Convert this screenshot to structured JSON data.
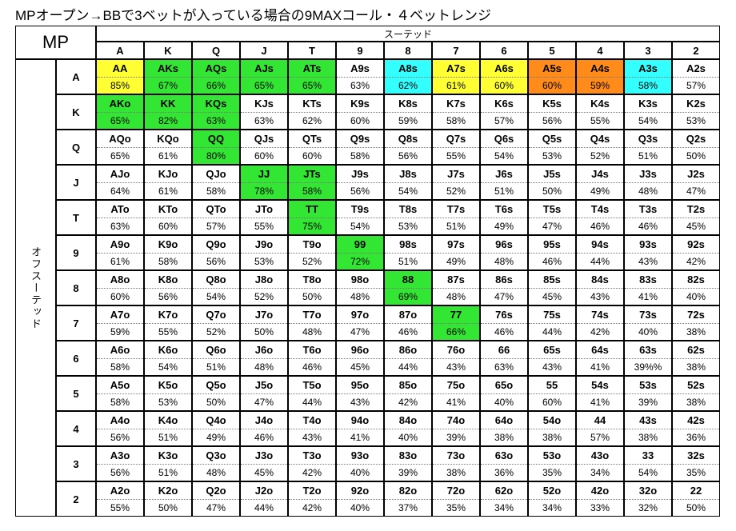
{
  "title": "MPオープン→BBで3ベットが入っている場合の9MAXコール・４ベットレンジ",
  "position": "MP",
  "suited_label": "スーテッド",
  "offsuit_label": "オフスーテッド",
  "columns": [
    "A",
    "K",
    "Q",
    "J",
    "T",
    "9",
    "8",
    "7",
    "6",
    "5",
    "4",
    "3",
    "2"
  ],
  "rows": [
    {
      "rank": "A",
      "cells": [
        {
          "hand": "AA",
          "pct": "85%",
          "color": "#ffff33"
        },
        {
          "hand": "AKs",
          "pct": "67%",
          "color": "#33e633"
        },
        {
          "hand": "AQs",
          "pct": "66%",
          "color": "#33e633"
        },
        {
          "hand": "AJs",
          "pct": "65%",
          "color": "#33e633"
        },
        {
          "hand": "ATs",
          "pct": "65%",
          "color": "#33e633"
        },
        {
          "hand": "A9s",
          "pct": "63%"
        },
        {
          "hand": "A8s",
          "pct": "62%",
          "color": "#33ffff"
        },
        {
          "hand": "A7s",
          "pct": "61%",
          "color": "#ffff33"
        },
        {
          "hand": "A6s",
          "pct": "60%",
          "color": "#ffff33"
        },
        {
          "hand": "A5s",
          "pct": "60%",
          "color": "#ff8c1a"
        },
        {
          "hand": "A4s",
          "pct": "59%",
          "color": "#ff8c1a"
        },
        {
          "hand": "A3s",
          "pct": "58%",
          "color": "#33ffff"
        },
        {
          "hand": "A2s",
          "pct": "57%"
        }
      ]
    },
    {
      "rank": "K",
      "cells": [
        {
          "hand": "AKo",
          "pct": "65%",
          "color": "#33e633"
        },
        {
          "hand": "KK",
          "pct": "82%",
          "color": "#33e633"
        },
        {
          "hand": "KQs",
          "pct": "63%",
          "color": "#33e633"
        },
        {
          "hand": "KJs",
          "pct": "63%"
        },
        {
          "hand": "KTs",
          "pct": "62%"
        },
        {
          "hand": "K9s",
          "pct": "60%"
        },
        {
          "hand": "K8s",
          "pct": "59%"
        },
        {
          "hand": "K7s",
          "pct": "58%"
        },
        {
          "hand": "K6s",
          "pct": "57%"
        },
        {
          "hand": "K5s",
          "pct": "56%"
        },
        {
          "hand": "K4s",
          "pct": "55%"
        },
        {
          "hand": "K3s",
          "pct": "54%"
        },
        {
          "hand": "K2s",
          "pct": "53%"
        }
      ]
    },
    {
      "rank": "Q",
      "cells": [
        {
          "hand": "AQo",
          "pct": "65%"
        },
        {
          "hand": "KQo",
          "pct": "61%"
        },
        {
          "hand": "QQ",
          "pct": "80%",
          "color": "#33e633"
        },
        {
          "hand": "QJs",
          "pct": "60%"
        },
        {
          "hand": "QTs",
          "pct": "60%"
        },
        {
          "hand": "Q9s",
          "pct": "58%"
        },
        {
          "hand": "Q8s",
          "pct": "56%"
        },
        {
          "hand": "Q7s",
          "pct": "55%"
        },
        {
          "hand": "Q6s",
          "pct": "54%"
        },
        {
          "hand": "Q5s",
          "pct": "53%"
        },
        {
          "hand": "Q4s",
          "pct": "52%"
        },
        {
          "hand": "Q3s",
          "pct": "51%"
        },
        {
          "hand": "Q2s",
          "pct": "50%"
        }
      ]
    },
    {
      "rank": "J",
      "cells": [
        {
          "hand": "AJo",
          "pct": "64%"
        },
        {
          "hand": "KJo",
          "pct": "61%"
        },
        {
          "hand": "QJo",
          "pct": "58%"
        },
        {
          "hand": "JJ",
          "pct": "78%",
          "color": "#33e633"
        },
        {
          "hand": "JTs",
          "pct": "58%",
          "color": "#33e633"
        },
        {
          "hand": "J9s",
          "pct": "56%"
        },
        {
          "hand": "J8s",
          "pct": "54%"
        },
        {
          "hand": "J7s",
          "pct": "52%"
        },
        {
          "hand": "J6s",
          "pct": "51%"
        },
        {
          "hand": "J5s",
          "pct": "50%"
        },
        {
          "hand": "J4s",
          "pct": "49%"
        },
        {
          "hand": "J3s",
          "pct": "48%"
        },
        {
          "hand": "J2s",
          "pct": "47%"
        }
      ]
    },
    {
      "rank": "T",
      "cells": [
        {
          "hand": "ATo",
          "pct": "63%"
        },
        {
          "hand": "KTo",
          "pct": "60%"
        },
        {
          "hand": "QTo",
          "pct": "57%"
        },
        {
          "hand": "JTo",
          "pct": "55%"
        },
        {
          "hand": "TT",
          "pct": "75%",
          "color": "#33e633"
        },
        {
          "hand": "T9s",
          "pct": "54%"
        },
        {
          "hand": "T8s",
          "pct": "53%"
        },
        {
          "hand": "T7s",
          "pct": "51%"
        },
        {
          "hand": "T6s",
          "pct": "49%"
        },
        {
          "hand": "T5s",
          "pct": "47%"
        },
        {
          "hand": "T4s",
          "pct": "46%"
        },
        {
          "hand": "T3s",
          "pct": "46%"
        },
        {
          "hand": "T2s",
          "pct": "45%"
        }
      ]
    },
    {
      "rank": "9",
      "cells": [
        {
          "hand": "A9o",
          "pct": "61%"
        },
        {
          "hand": "K9o",
          "pct": "58%"
        },
        {
          "hand": "Q9o",
          "pct": "56%"
        },
        {
          "hand": "J9o",
          "pct": "53%"
        },
        {
          "hand": "T9o",
          "pct": "52%"
        },
        {
          "hand": "99",
          "pct": "72%",
          "color": "#33e633"
        },
        {
          "hand": "98s",
          "pct": "51%"
        },
        {
          "hand": "97s",
          "pct": "49%"
        },
        {
          "hand": "96s",
          "pct": "48%"
        },
        {
          "hand": "95s",
          "pct": "46%"
        },
        {
          "hand": "94s",
          "pct": "44%"
        },
        {
          "hand": "93s",
          "pct": "43%"
        },
        {
          "hand": "92s",
          "pct": "42%"
        }
      ]
    },
    {
      "rank": "8",
      "cells": [
        {
          "hand": "A8o",
          "pct": "60%"
        },
        {
          "hand": "K8o",
          "pct": "56%"
        },
        {
          "hand": "Q8o",
          "pct": "54%"
        },
        {
          "hand": "J8o",
          "pct": "52%"
        },
        {
          "hand": "T8o",
          "pct": "50%"
        },
        {
          "hand": "98o",
          "pct": "48%"
        },
        {
          "hand": "88",
          "pct": "69%",
          "color": "#33e633"
        },
        {
          "hand": "87s",
          "pct": "48%"
        },
        {
          "hand": "86s",
          "pct": "47%"
        },
        {
          "hand": "85s",
          "pct": "45%"
        },
        {
          "hand": "84s",
          "pct": "43%"
        },
        {
          "hand": "83s",
          "pct": "41%"
        },
        {
          "hand": "82s",
          "pct": "40%"
        }
      ]
    },
    {
      "rank": "7",
      "cells": [
        {
          "hand": "A7o",
          "pct": "59%"
        },
        {
          "hand": "K7o",
          "pct": "55%"
        },
        {
          "hand": "Q7o",
          "pct": "52%"
        },
        {
          "hand": "J7o",
          "pct": "50%"
        },
        {
          "hand": "T7o",
          "pct": "48%"
        },
        {
          "hand": "97o",
          "pct": "47%"
        },
        {
          "hand": "87o",
          "pct": "46%"
        },
        {
          "hand": "77",
          "pct": "66%",
          "color": "#33e633"
        },
        {
          "hand": "76s",
          "pct": "46%"
        },
        {
          "hand": "75s",
          "pct": "44%"
        },
        {
          "hand": "74s",
          "pct": "42%"
        },
        {
          "hand": "73s",
          "pct": "40%"
        },
        {
          "hand": "72s",
          "pct": "38%"
        }
      ]
    },
    {
      "rank": "6",
      "cells": [
        {
          "hand": "A6o",
          "pct": "58%"
        },
        {
          "hand": "K6o",
          "pct": "54%"
        },
        {
          "hand": "Q6o",
          "pct": "51%"
        },
        {
          "hand": "J6o",
          "pct": "48%"
        },
        {
          "hand": "T6o",
          "pct": "46%"
        },
        {
          "hand": "96o",
          "pct": "45%"
        },
        {
          "hand": "86o",
          "pct": "44%"
        },
        {
          "hand": "76o",
          "pct": "43%"
        },
        {
          "hand": "66",
          "pct": "63%"
        },
        {
          "hand": "65s",
          "pct": "43%"
        },
        {
          "hand": "64s",
          "pct": "41%"
        },
        {
          "hand": "63s",
          "pct": "39%%"
        },
        {
          "hand": "62s",
          "pct": "38%"
        }
      ]
    },
    {
      "rank": "5",
      "cells": [
        {
          "hand": "A5o",
          "pct": "58%"
        },
        {
          "hand": "K5o",
          "pct": "53%"
        },
        {
          "hand": "Q5o",
          "pct": "50%"
        },
        {
          "hand": "J5o",
          "pct": "47%"
        },
        {
          "hand": "T5o",
          "pct": "44%"
        },
        {
          "hand": "95o",
          "pct": "43%"
        },
        {
          "hand": "85o",
          "pct": "42%"
        },
        {
          "hand": "75o",
          "pct": "41%"
        },
        {
          "hand": "65o",
          "pct": "40%"
        },
        {
          "hand": "55",
          "pct": "60%"
        },
        {
          "hand": "54s",
          "pct": "41%"
        },
        {
          "hand": "53s",
          "pct": "39%"
        },
        {
          "hand": "52s",
          "pct": "38%"
        }
      ]
    },
    {
      "rank": "4",
      "cells": [
        {
          "hand": "A4o",
          "pct": "56%"
        },
        {
          "hand": "K4o",
          "pct": "51%"
        },
        {
          "hand": "Q4o",
          "pct": "49%"
        },
        {
          "hand": "J4o",
          "pct": "46%"
        },
        {
          "hand": "T4o",
          "pct": "43%"
        },
        {
          "hand": "94o",
          "pct": "41%"
        },
        {
          "hand": "84o",
          "pct": "40%"
        },
        {
          "hand": "74o",
          "pct": "39%"
        },
        {
          "hand": "64o",
          "pct": "38%"
        },
        {
          "hand": "54o",
          "pct": "38%"
        },
        {
          "hand": "44",
          "pct": "57%"
        },
        {
          "hand": "43s",
          "pct": "38%"
        },
        {
          "hand": "42s",
          "pct": "36%"
        }
      ]
    },
    {
      "rank": "3",
      "cells": [
        {
          "hand": "A3o",
          "pct": "56%"
        },
        {
          "hand": "K3o",
          "pct": "51%"
        },
        {
          "hand": "Q3o",
          "pct": "48%"
        },
        {
          "hand": "J3o",
          "pct": "45%"
        },
        {
          "hand": "T3o",
          "pct": "42%"
        },
        {
          "hand": "93o",
          "pct": "40%"
        },
        {
          "hand": "83o",
          "pct": "39%"
        },
        {
          "hand": "73o",
          "pct": "38%"
        },
        {
          "hand": "63o",
          "pct": "36%"
        },
        {
          "hand": "53o",
          "pct": "35%"
        },
        {
          "hand": "43o",
          "pct": "34%"
        },
        {
          "hand": "33",
          "pct": "54%"
        },
        {
          "hand": "32s",
          "pct": "35%"
        }
      ]
    },
    {
      "rank": "2",
      "cells": [
        {
          "hand": "A2o",
          "pct": "55%"
        },
        {
          "hand": "K2o",
          "pct": "50%"
        },
        {
          "hand": "Q2o",
          "pct": "47%"
        },
        {
          "hand": "J2o",
          "pct": "44%"
        },
        {
          "hand": "T2o",
          "pct": "42%"
        },
        {
          "hand": "92o",
          "pct": "40%"
        },
        {
          "hand": "82o",
          "pct": "37%"
        },
        {
          "hand": "72o",
          "pct": "35%"
        },
        {
          "hand": "62o",
          "pct": "34%"
        },
        {
          "hand": "52o",
          "pct": "34%"
        },
        {
          "hand": "42o",
          "pct": "33%"
        },
        {
          "hand": "32o",
          "pct": "32%"
        },
        {
          "hand": "22",
          "pct": "50%"
        }
      ]
    }
  ]
}
